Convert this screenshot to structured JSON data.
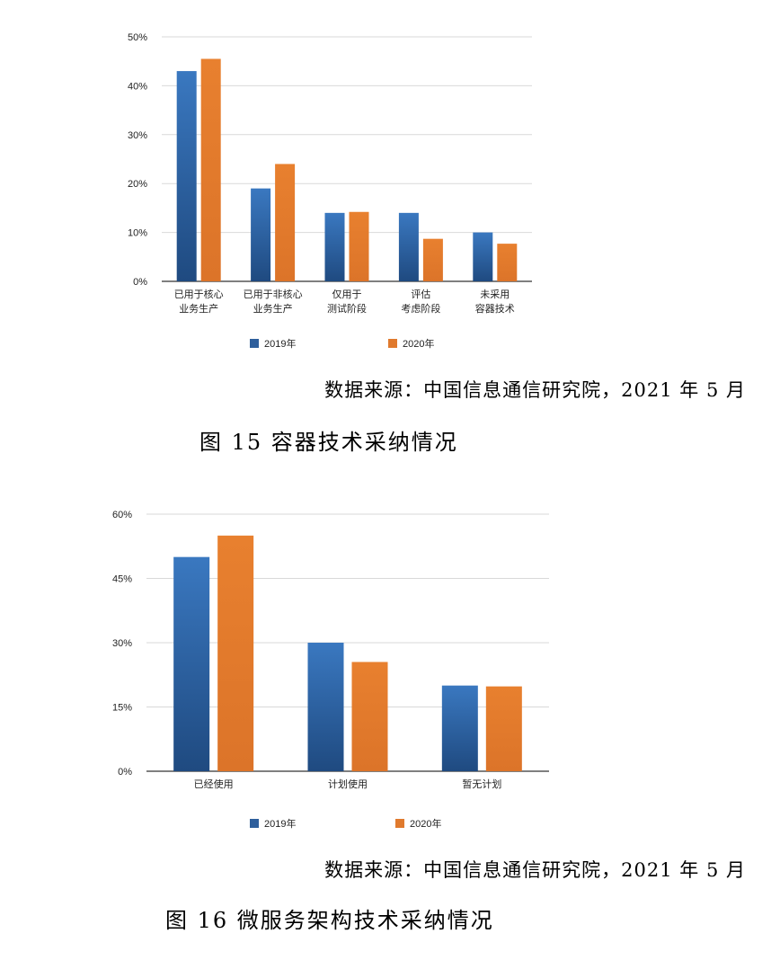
{
  "chart_data": [
    {
      "type": "bar",
      "categories": [
        "已用于核心\n业务生产",
        "已用于非核心\n业务生产",
        "仅用于\n测试阶段",
        "评估\n考虑阶段",
        "未采用\n容器技术"
      ],
      "series": [
        {
          "name": "2019年",
          "values": [
            43,
            19,
            14,
            14,
            10
          ]
        },
        {
          "name": "2020年",
          "values": [
            45.5,
            24,
            14.2,
            8.7,
            7.7
          ]
        }
      ],
      "yticks": [
        "0%",
        "10%",
        "20%",
        "30%",
        "40%",
        "50%"
      ],
      "ylim": [
        0,
        50
      ],
      "grid": true,
      "legend": "bottom",
      "colors": [
        "#2e5f9c",
        "#e07a2e"
      ]
    },
    {
      "type": "bar",
      "categories": [
        "已经使用",
        "计划使用",
        "暂无计划"
      ],
      "series": [
        {
          "name": "2019年",
          "values": [
            50,
            30,
            20
          ]
        },
        {
          "name": "2020年",
          "values": [
            55,
            25.5,
            19.8
          ]
        }
      ],
      "yticks": [
        "0%",
        "15%",
        "30%",
        "45%",
        "60%"
      ],
      "ylim": [
        0,
        60
      ],
      "grid": true,
      "legend": "bottom",
      "colors": [
        "#2e5f9c",
        "#e07a2e"
      ]
    }
  ],
  "figure1": {
    "source": "数据来源：中国信息通信研究院，2021 年 5 月",
    "caption": "图 15  容器技术采纳情况"
  },
  "figure2": {
    "source": "数据来源：中国信息通信研究院，2021 年 5 月",
    "caption": "图 16  微服务架构技术采纳情况"
  }
}
